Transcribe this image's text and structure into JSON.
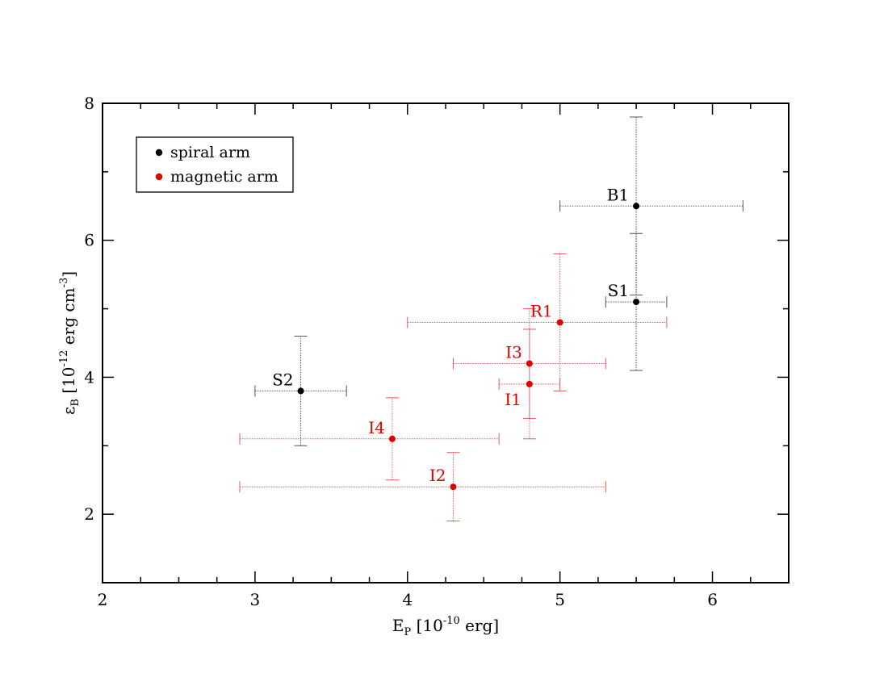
{
  "chart_data": {
    "type": "scatter",
    "xlabel": {
      "base": "E",
      "sub": "P",
      "pre": " [10",
      "sup": "-10",
      "post": " erg]"
    },
    "ylabel": {
      "base": "ε",
      "sub": "B",
      "pre": " [10",
      "sup": "-12",
      "mid": " erg cm",
      "sup2": "-3",
      "post": "]"
    },
    "xlim": [
      2,
      6.5
    ],
    "ylim": [
      1,
      8
    ],
    "xticks": [
      2,
      3,
      4,
      5,
      6
    ],
    "yticks": [
      2,
      4,
      6,
      8
    ],
    "xtick_labels": [
      "2",
      "3",
      "4",
      "5",
      "6"
    ],
    "ytick_labels": [
      "2",
      "4",
      "6",
      "8"
    ],
    "grid": false,
    "legend": {
      "placement": "top-left",
      "entries": [
        {
          "label": "spiral arm",
          "color": "#000000"
        },
        {
          "label": "magnetic arm",
          "color": "#e00000"
        }
      ]
    },
    "series": [
      {
        "name": "spiral arm",
        "color": "#000000",
        "points": [
          {
            "label": "B1",
            "x": 5.5,
            "y": 6.5,
            "xerr": [
              5.0,
              6.2
            ],
            "yerr": [
              5.2,
              7.8
            ],
            "label_pos": "left"
          },
          {
            "label": "S1",
            "x": 5.5,
            "y": 5.1,
            "xerr": [
              5.3,
              5.7
            ],
            "yerr": [
              4.1,
              6.1
            ],
            "label_pos": "left"
          },
          {
            "label": "S2",
            "x": 3.3,
            "y": 3.8,
            "xerr": [
              3.0,
              3.6
            ],
            "yerr": [
              3.0,
              4.6
            ],
            "label_pos": "left"
          }
        ]
      },
      {
        "name": "magnetic arm",
        "color": "#e00000",
        "points": [
          {
            "label": "R1",
            "x": 5.0,
            "y": 4.8,
            "xerr": [
              4.0,
              5.7
            ],
            "yerr": [
              3.8,
              5.8
            ],
            "label_pos": "left"
          },
          {
            "label": "I3",
            "x": 4.8,
            "y": 4.2,
            "xerr": [
              4.3,
              5.3
            ],
            "yerr": [
              3.4,
              5.0
            ],
            "label_pos": "left"
          },
          {
            "label": "I1",
            "x": 4.8,
            "y": 3.9,
            "xerr": [
              4.6,
              5.0
            ],
            "yerr": [
              3.1,
              4.7
            ],
            "label_pos": "below-left"
          },
          {
            "label": "I4",
            "x": 3.9,
            "y": 3.1,
            "xerr": [
              2.9,
              4.6
            ],
            "yerr": [
              2.5,
              3.7
            ],
            "label_pos": "left"
          },
          {
            "label": "I2",
            "x": 4.3,
            "y": 2.4,
            "xerr": [
              2.9,
              5.3
            ],
            "yerr": [
              1.9,
              2.9
            ],
            "label_pos": "left"
          }
        ]
      }
    ]
  }
}
